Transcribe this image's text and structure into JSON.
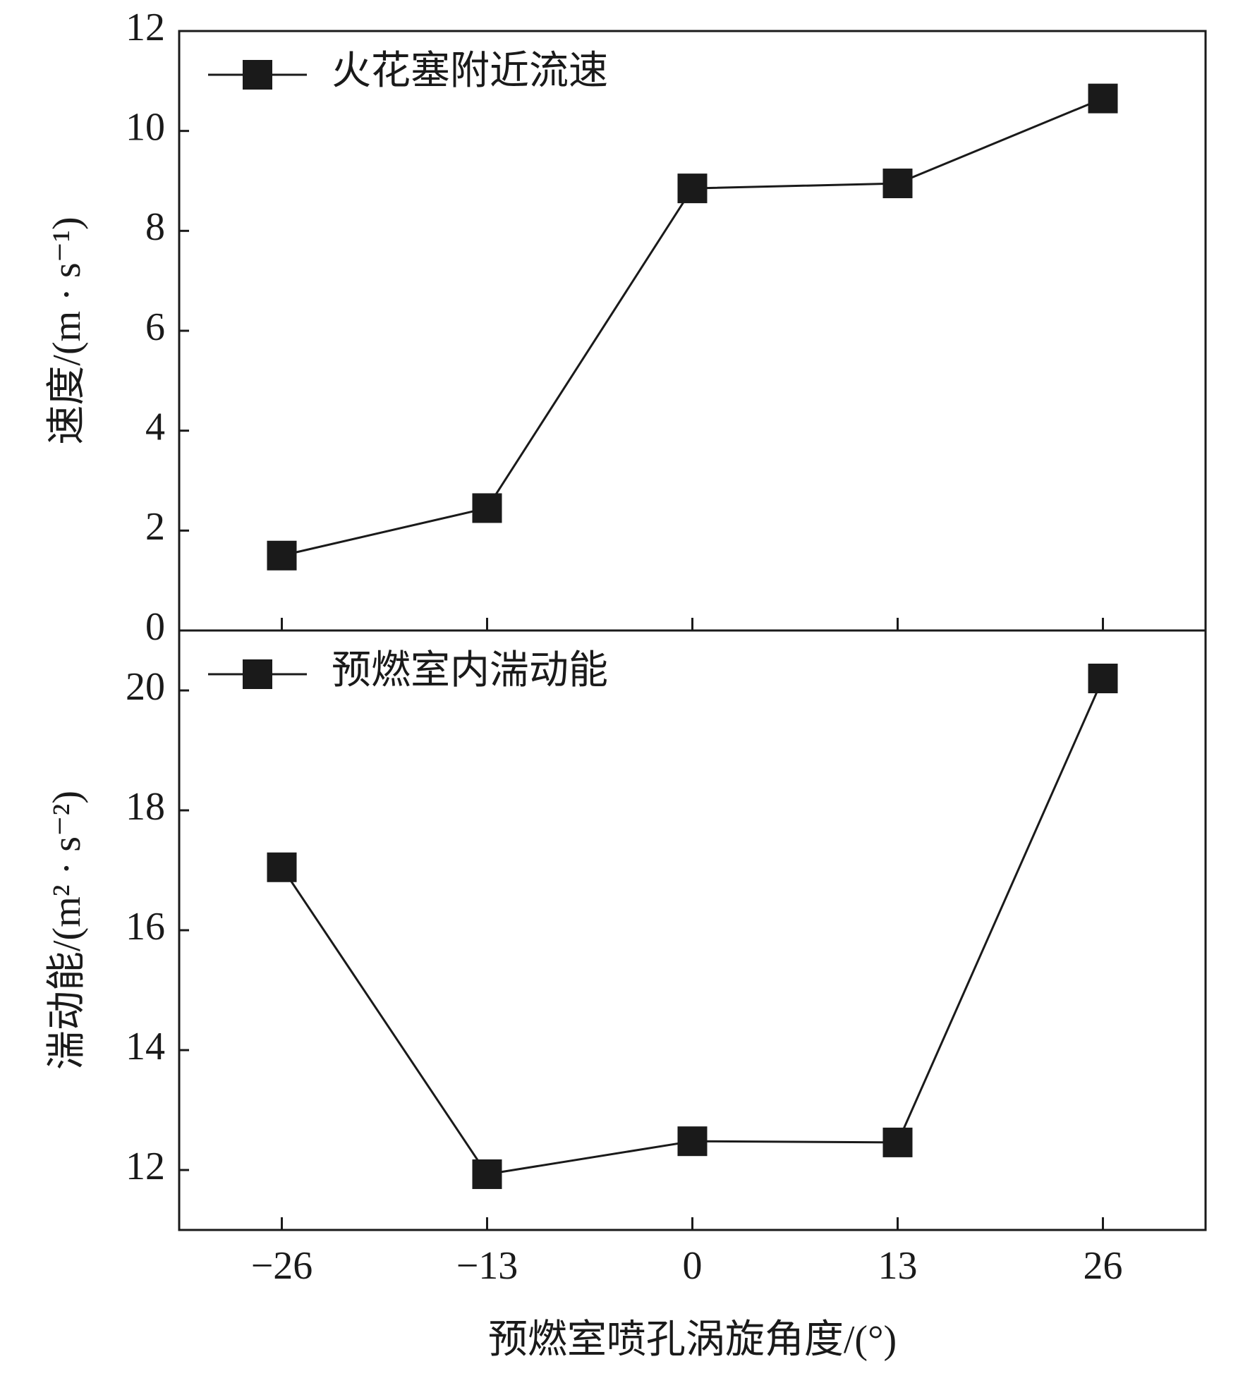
{
  "chart_data": [
    {
      "type": "line",
      "ylabel": "速度/(m · s⁻¹)",
      "x": [
        -26,
        -13,
        0,
        13,
        26
      ],
      "series": [
        {
          "name": "火花塞附近流速",
          "color": "#1a1a1a",
          "values": [
            1.5,
            2.45,
            8.85,
            8.95,
            10.65
          ]
        }
      ],
      "xlim": [
        -32.5,
        32.5
      ],
      "xticks": [
        -26,
        -13,
        0,
        13,
        26
      ],
      "ylim": [
        0,
        12
      ],
      "yticks": [
        0,
        2,
        4,
        6,
        8,
        10,
        12
      ],
      "legend": "upper-left",
      "grid": false
    },
    {
      "type": "line",
      "xlabel": "预燃室喷孔涡旋角度/(°)",
      "ylabel": "湍动能/(m² · s⁻²)",
      "x": [
        -26,
        -13,
        0,
        13,
        26
      ],
      "series": [
        {
          "name": "预燃室内湍动能",
          "color": "#1a1a1a",
          "values": [
            17.05,
            11.93,
            12.48,
            12.46,
            20.2
          ]
        }
      ],
      "xlim": [
        -32.5,
        32.5
      ],
      "xticks": [
        {
          "value": -26,
          "label": "−26"
        },
        {
          "value": -13,
          "label": "−13"
        },
        0,
        13,
        26
      ],
      "ylim": [
        11,
        21
      ],
      "yticks": [
        12,
        14,
        16,
        18,
        20
      ],
      "legend": "upper-left",
      "grid": false
    }
  ]
}
